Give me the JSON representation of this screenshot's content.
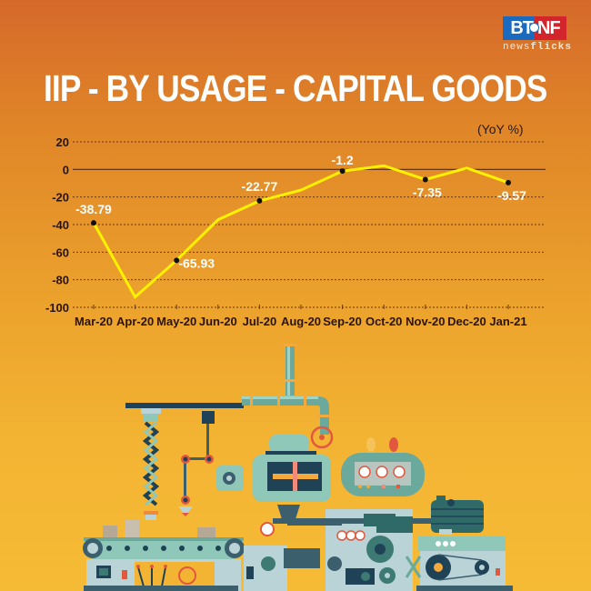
{
  "logo": {
    "left_text": "BT",
    "right_text": "NF",
    "sub_text_light": "news",
    "sub_text_bold": "flicks",
    "left_color": "#1a6bc0",
    "right_color": "#d3262c"
  },
  "title": "IIP - BY USAGE - CAPITAL GOODS",
  "unit_label": "(YoY %)",
  "colors": {
    "line": "#fff200",
    "marker": "#111111",
    "grid": "#6b3514",
    "zero_line": "#5a2a10",
    "text_dark": "#2a140a",
    "label": "#ffffff"
  },
  "chart_data": {
    "type": "line",
    "title": "IIP - BY USAGE - CAPITAL GOODS",
    "xlabel": "",
    "ylabel": "(YoY %)",
    "ylim": [
      -100,
      20
    ],
    "yticks": [
      20,
      0,
      -20,
      -40,
      -60,
      -80,
      -100
    ],
    "grid": true,
    "legend": null,
    "categories": [
      "Mar-20",
      "Apr-20",
      "May-20",
      "Jun-20",
      "Jul-20",
      "Aug-20",
      "Sep-20",
      "Oct-20",
      "Nov-20",
      "Dec-20",
      "Jan-21"
    ],
    "series": [
      {
        "name": "Capital Goods YoY %",
        "values": [
          -38.79,
          -92.5,
          -65.93,
          -36.5,
          -22.77,
          -15.0,
          -1.2,
          2.7,
          -7.35,
          1.0,
          -9.57
        ]
      }
    ],
    "annotations": [
      {
        "category": "Mar-20",
        "label": "-38.79"
      },
      {
        "category": "May-20",
        "label": "-65.93"
      },
      {
        "category": "Jul-20",
        "label": "-22.77"
      },
      {
        "category": "Sep-20",
        "label": "-1.2"
      },
      {
        "category": "Nov-20",
        "label": "-7.35"
      },
      {
        "category": "Jan-21",
        "label": "-9.57"
      }
    ]
  },
  "illustration": {
    "description": "Industrial machinery illustration (conveyor belt, robotic arm, pipes, gauges, electric motor)",
    "colors": {
      "teal_light": "#8fc7b8",
      "teal_mid": "#6aa99b",
      "navy": "#1f4257",
      "slate": "#b9d3d6",
      "red": "#e2583e",
      "orange_accent": "#f08a3a"
    }
  }
}
